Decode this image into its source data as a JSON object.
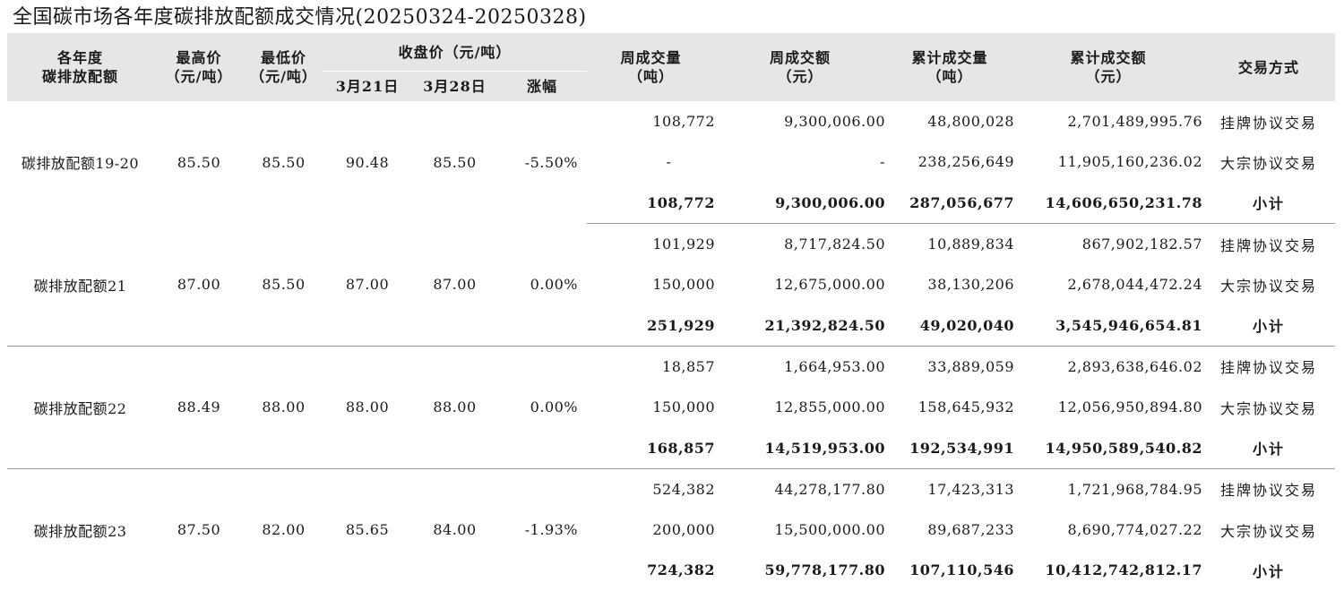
{
  "title": "全国碳市场各年度碳排放配额成交情况(20250324-20250328)",
  "header": {
    "col_year_line1": "各年度",
    "col_year_line2": "碳排放配额",
    "col_high_line1": "最高价",
    "col_high_line2": "（元/吨）",
    "col_low_line1": "最低价",
    "col_low_line2": "（元/吨）",
    "col_close": "收盘价（元/吨）",
    "col_close_prev": "3月21日",
    "col_close_curr": "3月28日",
    "col_change": "涨幅",
    "col_wvol_line1": "周成交量",
    "col_wvol_line2": "（吨）",
    "col_wamt_line1": "周成交额",
    "col_wamt_line2": "（元）",
    "col_cvol_line1": "累计成交量",
    "col_cvol_line2": "（吨）",
    "col_camt_line1": "累计成交额",
    "col_camt_line2": "（元）",
    "col_mode": "交易方式"
  },
  "groups": [
    {
      "name": "碳排放配额19-20",
      "high": "85.50",
      "low": "85.50",
      "close_prev": "90.48",
      "close_curr": "85.50",
      "change": "-5.50%",
      "rows": [
        {
          "weekly_volume": "108,772",
          "weekly_amount": "9,300,006.00",
          "cum_volume": "48,800,028",
          "cum_amount": "2,701,489,995.76",
          "mode": "挂牌协议交易"
        },
        {
          "weekly_volume": "-",
          "weekly_amount": "-",
          "cum_volume": "238,256,649",
          "cum_amount": "11,905,160,236.02",
          "mode": "大宗协议交易"
        },
        {
          "weekly_volume": "108,772",
          "weekly_amount": "9,300,006.00",
          "cum_volume": "287,056,677",
          "cum_amount": "14,606,650,231.78",
          "mode": "小计"
        }
      ]
    },
    {
      "name": "碳排放配额21",
      "high": "87.00",
      "low": "85.50",
      "close_prev": "87.00",
      "close_curr": "87.00",
      "change": "0.00%",
      "rows": [
        {
          "weekly_volume": "101,929",
          "weekly_amount": "8,717,824.50",
          "cum_volume": "10,889,834",
          "cum_amount": "867,902,182.57",
          "mode": "挂牌协议交易"
        },
        {
          "weekly_volume": "150,000",
          "weekly_amount": "12,675,000.00",
          "cum_volume": "38,130,206",
          "cum_amount": "2,678,044,472.24",
          "mode": "大宗协议交易"
        },
        {
          "weekly_volume": "251,929",
          "weekly_amount": "21,392,824.50",
          "cum_volume": "49,020,040",
          "cum_amount": "3,545,946,654.81",
          "mode": "小计"
        }
      ]
    },
    {
      "name": "碳排放配额22",
      "high": "88.49",
      "low": "88.00",
      "close_prev": "88.00",
      "close_curr": "88.00",
      "change": "0.00%",
      "rows": [
        {
          "weekly_volume": "18,857",
          "weekly_amount": "1,664,953.00",
          "cum_volume": "33,889,059",
          "cum_amount": "2,893,638,646.02",
          "mode": "挂牌协议交易"
        },
        {
          "weekly_volume": "150,000",
          "weekly_amount": "12,855,000.00",
          "cum_volume": "158,645,932",
          "cum_amount": "12,056,950,894.80",
          "mode": "大宗协议交易"
        },
        {
          "weekly_volume": "168,857",
          "weekly_amount": "14,519,953.00",
          "cum_volume": "192,534,991",
          "cum_amount": "14,950,589,540.82",
          "mode": "小计"
        }
      ]
    },
    {
      "name": "碳排放配额23",
      "high": "87.50",
      "low": "82.00",
      "close_prev": "85.65",
      "close_curr": "84.00",
      "change": "-1.93%",
      "rows": [
        {
          "weekly_volume": "524,382",
          "weekly_amount": "44,278,177.80",
          "cum_volume": "17,423,313",
          "cum_amount": "1,721,968,784.95",
          "mode": "挂牌协议交易"
        },
        {
          "weekly_volume": "200,000",
          "weekly_amount": "15,500,000.00",
          "cum_volume": "89,687,233",
          "cum_amount": "8,690,774,027.22",
          "mode": "大宗协议交易"
        },
        {
          "weekly_volume": "724,382",
          "weekly_amount": "59,778,177.80",
          "cum_volume": "107,110,546",
          "cum_amount": "10,412,742,812.17",
          "mode": "小计"
        }
      ]
    }
  ]
}
